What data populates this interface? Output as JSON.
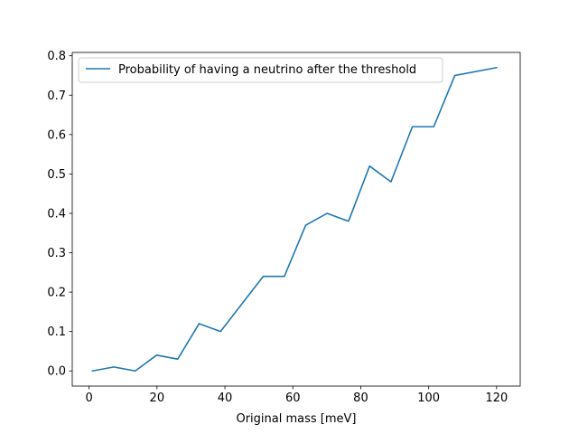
{
  "chart_data": {
    "type": "line",
    "title": "",
    "xlabel": "Original mass [meV]",
    "ylabel": "",
    "xlim": [
      -4.95,
      126.95
    ],
    "ylim": [
      -0.0385,
      0.8085
    ],
    "xticks": [
      0,
      20,
      40,
      60,
      80,
      100,
      120
    ],
    "yticks": [
      0.0,
      0.1,
      0.2,
      0.3,
      0.4,
      0.5,
      0.6,
      0.7,
      0.8
    ],
    "xtick_labels": [
      "0",
      "20",
      "40",
      "60",
      "80",
      "100",
      "120"
    ],
    "ytick_labels": [
      "0.0",
      "0.1",
      "0.2",
      "0.3",
      "0.4",
      "0.5",
      "0.6",
      "0.7",
      "0.8"
    ],
    "grid": false,
    "legend_position": "top-left",
    "series": [
      {
        "name": "Probability of having a neutrino after the threshold",
        "color": "#1f77b4",
        "x": [
          1,
          7.3,
          13.6,
          19.9,
          26.1,
          32.4,
          38.7,
          45,
          51.3,
          57.5,
          63.8,
          70.1,
          76.4,
          82.6,
          88.9,
          95.2,
          101.5,
          107.7,
          120
        ],
        "y": [
          0.0,
          0.01,
          0.0,
          0.04,
          0.03,
          0.12,
          0.1,
          0.17,
          0.24,
          0.24,
          0.37,
          0.4,
          0.38,
          0.52,
          0.48,
          0.62,
          0.62,
          0.75,
          0.77
        ]
      }
    ]
  }
}
